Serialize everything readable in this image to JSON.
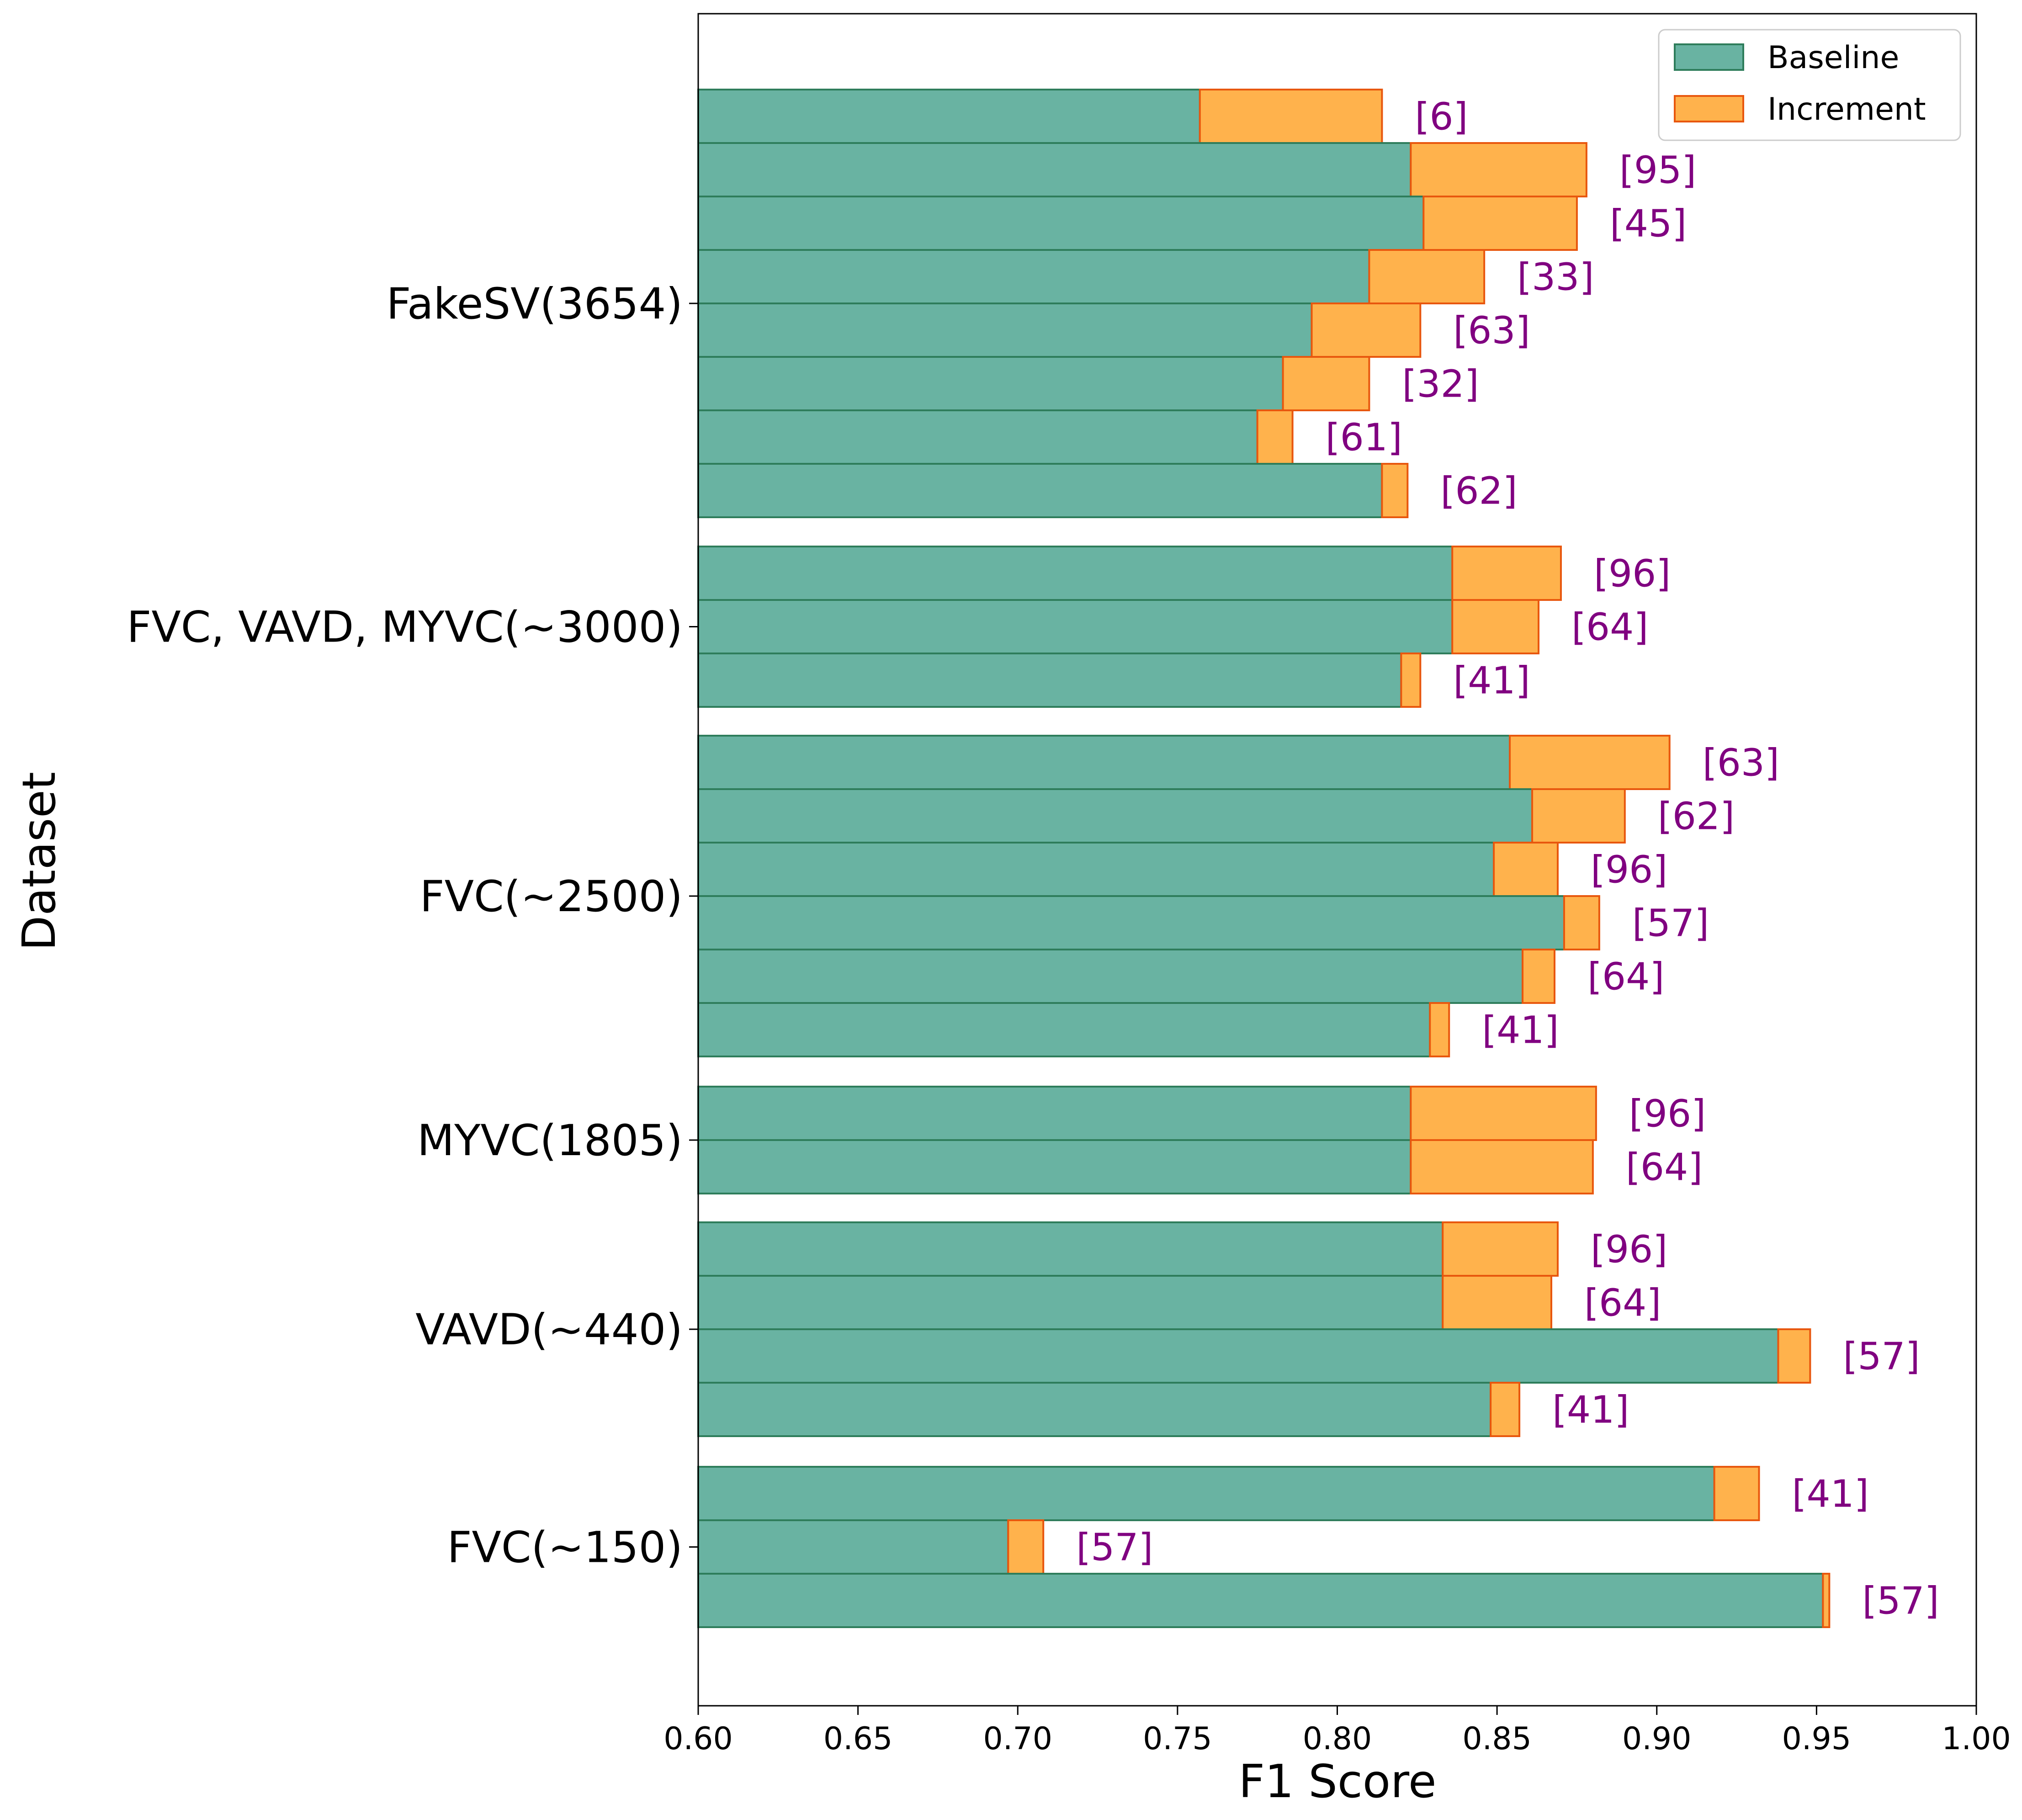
{
  "chart_data": {
    "type": "bar",
    "orientation": "horizontal",
    "stacked": true,
    "xlabel": "F1 Score",
    "ylabel": "Dataset",
    "xlim": [
      0.6,
      1.0
    ],
    "xticks": [
      "0.60",
      "0.65",
      "0.70",
      "0.75",
      "0.80",
      "0.85",
      "0.90",
      "0.95",
      "1.00"
    ],
    "legend": {
      "position": "top-right",
      "entries": [
        {
          "label": "Baseline",
          "color": "#69b3a2",
          "edge": "#2e7d5b"
        },
        {
          "label": "Increment",
          "color": "#ffb24c",
          "edge": "#e8570e"
        }
      ]
    },
    "ref_color": "#800080",
    "groups": [
      {
        "label": "FakeSV(3654)",
        "bars": [
          {
            "ref": "[6]",
            "baseline": 0.757,
            "increment": 0.057
          },
          {
            "ref": "[95]",
            "baseline": 0.823,
            "increment": 0.055
          },
          {
            "ref": "[45]",
            "baseline": 0.827,
            "increment": 0.048
          },
          {
            "ref": "[33]",
            "baseline": 0.81,
            "increment": 0.036
          },
          {
            "ref": "[63]",
            "baseline": 0.792,
            "increment": 0.034
          },
          {
            "ref": "[32]",
            "baseline": 0.783,
            "increment": 0.027
          },
          {
            "ref": "[61]",
            "baseline": 0.775,
            "increment": 0.011
          },
          {
            "ref": "[62]",
            "baseline": 0.814,
            "increment": 0.008
          }
        ]
      },
      {
        "label": "FVC, VAVD, MYVC(~3000)",
        "bars": [
          {
            "ref": "[96]",
            "baseline": 0.836,
            "increment": 0.034
          },
          {
            "ref": "[64]",
            "baseline": 0.836,
            "increment": 0.027
          },
          {
            "ref": "[41]",
            "baseline": 0.82,
            "increment": 0.006
          }
        ]
      },
      {
        "label": "FVC(~2500)",
        "bars": [
          {
            "ref": "[63]",
            "baseline": 0.854,
            "increment": 0.05
          },
          {
            "ref": "[62]",
            "baseline": 0.861,
            "increment": 0.029
          },
          {
            "ref": "[96]",
            "baseline": 0.849,
            "increment": 0.02
          },
          {
            "ref": "[57]",
            "baseline": 0.871,
            "increment": 0.011
          },
          {
            "ref": "[64]",
            "baseline": 0.858,
            "increment": 0.01
          },
          {
            "ref": "[41]",
            "baseline": 0.829,
            "increment": 0.006
          }
        ]
      },
      {
        "label": "MYVC(1805)",
        "bars": [
          {
            "ref": "[96]",
            "baseline": 0.823,
            "increment": 0.058
          },
          {
            "ref": "[64]",
            "baseline": 0.823,
            "increment": 0.057
          }
        ]
      },
      {
        "label": "VAVD(~440)",
        "bars": [
          {
            "ref": "[96]",
            "baseline": 0.833,
            "increment": 0.036
          },
          {
            "ref": "[64]",
            "baseline": 0.833,
            "increment": 0.034
          },
          {
            "ref": "[57]",
            "baseline": 0.938,
            "increment": 0.01
          },
          {
            "ref": "[41]",
            "baseline": 0.848,
            "increment": 0.009
          }
        ]
      },
      {
        "label": "FVC(~150)",
        "bars": [
          {
            "ref": "[41]",
            "baseline": 0.918,
            "increment": 0.014
          },
          {
            "ref": "[57]",
            "baseline": 0.697,
            "increment": 0.011
          },
          {
            "ref": "[57]",
            "baseline": 0.952,
            "increment": 0.002
          }
        ]
      }
    ]
  }
}
